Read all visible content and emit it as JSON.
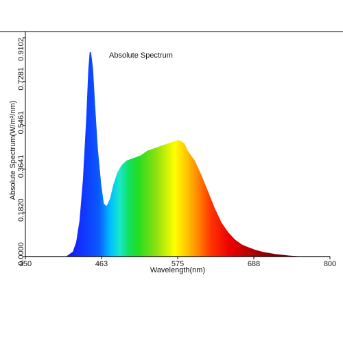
{
  "chart_data": {
    "type": "area",
    "title": "Absolute Spectrum",
    "xlabel": "Wavelength(nm)",
    "ylabel": "Absolute Spectrum(W/m²/nm)",
    "xlim": [
      350,
      800
    ],
    "ylim": [
      0,
      0.9102
    ],
    "x_ticks": [
      "350",
      "463",
      "575",
      "688",
      "800"
    ],
    "y_ticks": [
      "0.0000",
      "0.1820",
      "0.3641",
      "0.5461",
      "0.7281",
      "0.9102"
    ],
    "fill": "visible-spectrum gradient",
    "series": [
      {
        "x": [
          350,
          410,
          420,
          425,
          430,
          435,
          440,
          443,
          445,
          447,
          450,
          453,
          457,
          462,
          466,
          470,
          475,
          480,
          486,
          492,
          500,
          510,
          520,
          530,
          540,
          550,
          560,
          570,
          575,
          580,
          585,
          590,
          600,
          610,
          620,
          630,
          640,
          650,
          660,
          670,
          680,
          690,
          700,
          710,
          720,
          730,
          740,
          750,
          760,
          800
        ],
        "y": [
          0.0,
          0.0,
          0.02,
          0.06,
          0.15,
          0.32,
          0.58,
          0.78,
          0.85,
          0.85,
          0.78,
          0.63,
          0.45,
          0.3,
          0.22,
          0.21,
          0.24,
          0.3,
          0.35,
          0.38,
          0.4,
          0.41,
          0.42,
          0.44,
          0.45,
          0.46,
          0.47,
          0.48,
          0.485,
          0.48,
          0.47,
          0.44,
          0.4,
          0.34,
          0.27,
          0.2,
          0.14,
          0.1,
          0.07,
          0.05,
          0.038,
          0.028,
          0.02,
          0.015,
          0.01,
          0.007,
          0.004,
          0.002,
          0.0,
          0.0
        ]
      }
    ]
  }
}
